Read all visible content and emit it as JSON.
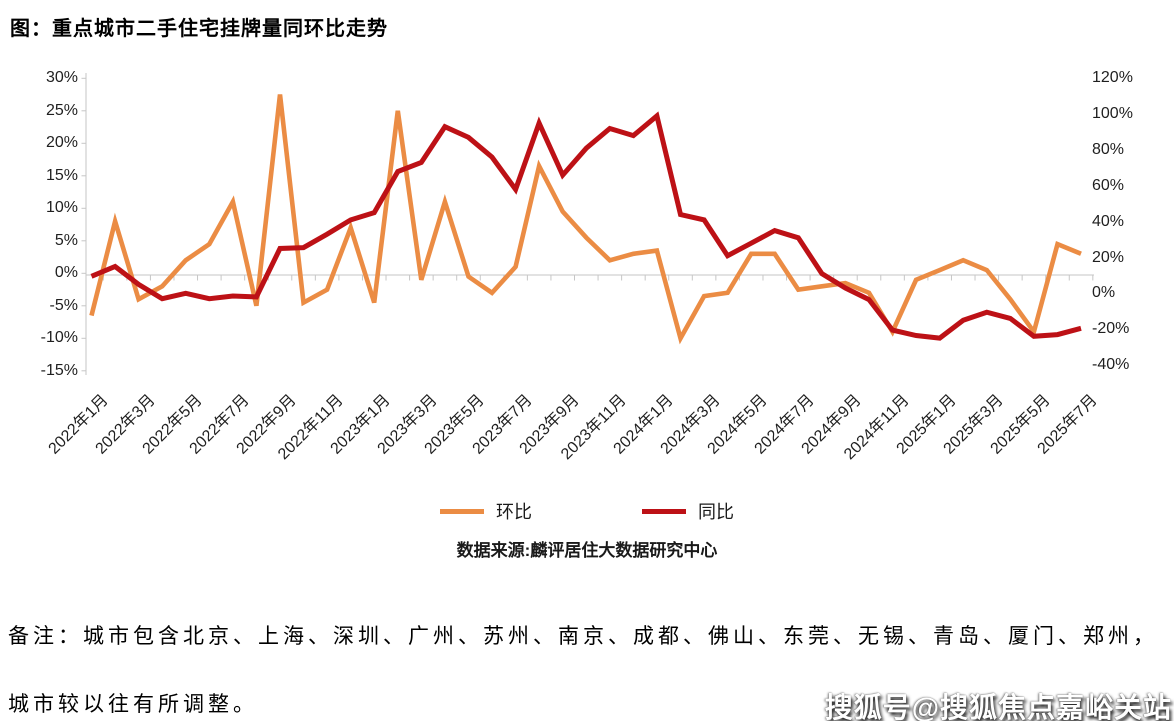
{
  "title": "图：重点城市二手住宅挂牌量同环比走势",
  "source": "数据来源:麟评居住大数据研究中心",
  "notes": [
    "备注：城市包含北京、上海、深圳、广州、苏州、南京、成都、佛山、东莞、无锡、青岛、厦门、郑州，",
    "城市较以往有所调整。"
  ],
  "watermark": "搜狐号@搜狐焦点嘉峪关站",
  "colors": {
    "mom_line": "#EB8C44",
    "yoy_line": "#BD1116",
    "axis_gray": "#C6C6C6"
  },
  "chart_data": {
    "type": "line",
    "title": "图：重点城市二手住宅挂牌量同环比走势",
    "grid": "single horizontal zero line",
    "legend_position": "bottom",
    "x": [
      "2022年1月",
      "2022年2月",
      "2022年3月",
      "2022年4月",
      "2022年5月",
      "2022年6月",
      "2022年7月",
      "2022年8月",
      "2022年9月",
      "2022年10月",
      "2022年11月",
      "2022年12月",
      "2023年1月",
      "2023年2月",
      "2023年3月",
      "2023年4月",
      "2023年5月",
      "2023年6月",
      "2023年7月",
      "2023年8月",
      "2023年9月",
      "2023年10月",
      "2023年11月",
      "2023年12月",
      "2024年1月",
      "2024年2月",
      "2024年3月",
      "2024年4月",
      "2024年5月",
      "2024年6月",
      "2024年7月",
      "2024年8月",
      "2024年9月",
      "2024年10月",
      "2024年11月",
      "2024年12月",
      "2025年1月",
      "2025年2月",
      "2025年3月",
      "2025年4月",
      "2025年5月",
      "2025年6月",
      "2025年7月"
    ],
    "x_tick_labels_shown": [
      "2022年1月",
      "2022年3月",
      "2022年5月",
      "2022年7月",
      "2022年9月",
      "2022年11月",
      "2023年1月",
      "2023年3月",
      "2023年5月",
      "2023年7月",
      "2023年9月",
      "2023年11月",
      "2024年1月",
      "2024年3月",
      "2024年5月",
      "2024年7月",
      "2024年9月",
      "2024年11月",
      "2025年1月",
      "2025年3月",
      "2025年5月",
      "2025年7月"
    ],
    "series": [
      {
        "name": "环比",
        "axis": "left",
        "color": "#EB8C44",
        "values": [
          -6.5,
          8,
          -4,
          -2,
          2,
          4.5,
          11,
          -5,
          27.5,
          -4.5,
          -2.5,
          7,
          -4.5,
          25,
          -1,
          11,
          -0.5,
          -3,
          1,
          16.5,
          9.5,
          5.5,
          2,
          3,
          3.5,
          -10,
          -3.5,
          -3,
          3,
          3,
          -2.5,
          -2,
          -1.5,
          -3,
          -9,
          -1,
          0.5,
          2,
          0.5,
          -4,
          -9,
          4.5,
          3
        ]
      },
      {
        "name": "同比",
        "axis": "right",
        "color": "#BD1116",
        "values": [
          9.5,
          15,
          5,
          -3,
          0,
          -3,
          -1.5,
          -2,
          25,
          25.5,
          33,
          41,
          45,
          68,
          73,
          93,
          87,
          76,
          58,
          95,
          66,
          81,
          92,
          88,
          99,
          44,
          41,
          21,
          28,
          35,
          31,
          11,
          3,
          -3.5,
          -20.5,
          -23.5,
          -25,
          -15,
          -10.5,
          -14,
          -24,
          -23,
          -19.5
        ]
      }
    ],
    "left_axis": {
      "min": -15,
      "max": 30,
      "step": 5,
      "unit": "%",
      "tick_labels": [
        "30%",
        "25%",
        "20%",
        "15%",
        "10%",
        "5%",
        "0%",
        "-5%",
        "-10%",
        "-15%"
      ]
    },
    "right_axis": {
      "min": -40,
      "max": 120,
      "step": 20,
      "unit": "%",
      "tick_labels": [
        "120%",
        "100%",
        "80%",
        "60%",
        "40%",
        "20%",
        "0%",
        "-20%",
        "-40%"
      ]
    }
  }
}
